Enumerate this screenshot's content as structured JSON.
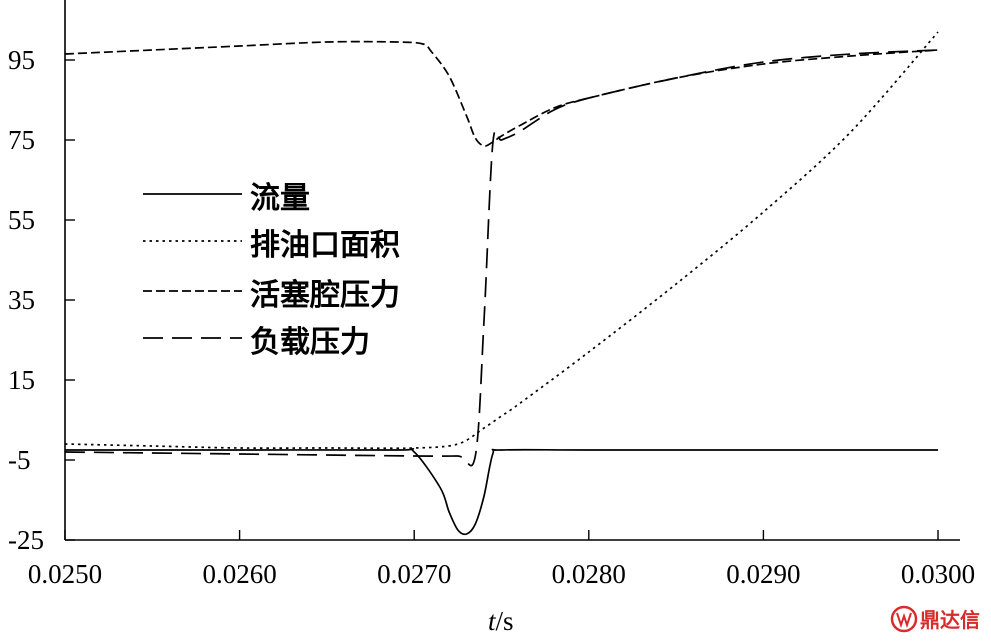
{
  "chart_data": {
    "type": "line",
    "xlabel_italic": "t",
    "xlabel_unit": "/s",
    "xlim": [
      0.025,
      0.03
    ],
    "ylim": [
      -25,
      105
    ],
    "x_ticks": [
      "0.0250",
      "0.0260",
      "0.0270",
      "0.0280",
      "0.0290",
      "0.0300"
    ],
    "x_tick_values": [
      0.025,
      0.026,
      0.027,
      0.028,
      0.029,
      0.03
    ],
    "y_ticks": [
      "95",
      "75",
      "55",
      "35",
      "15",
      "-5",
      "-25"
    ],
    "y_tick_values": [
      95,
      75,
      55,
      35,
      15,
      -5,
      -25
    ],
    "grid": false,
    "legend_position": "center-left",
    "series": [
      {
        "name": "流量",
        "style": "solid",
        "x": [
          0.025,
          0.026,
          0.0269,
          0.027,
          0.02715,
          0.0272,
          0.02725,
          0.0273,
          0.02735,
          0.0274,
          0.02745,
          0.0275,
          0.028,
          0.029,
          0.03
        ],
        "y": [
          -2.5,
          -2.5,
          -2.5,
          -3,
          -12,
          -18,
          -22.5,
          -23.5,
          -21,
          -14,
          -3.5,
          -2.5,
          -2.5,
          -2.5,
          -2.5
        ]
      },
      {
        "name": "排油口面积",
        "style": "dotted",
        "x": [
          0.025,
          0.0255,
          0.026,
          0.0265,
          0.027,
          0.02725,
          0.0274,
          0.0275,
          0.0276,
          0.028,
          0.0285,
          0.029,
          0.0295,
          0.03
        ],
        "y": [
          -1,
          -1.5,
          -2,
          -2,
          -2,
          -1,
          3,
          6,
          9,
          22,
          39,
          57,
          77,
          102
        ]
      },
      {
        "name": "活塞腔压力",
        "style": "dashed",
        "x": [
          0.025,
          0.0255,
          0.026,
          0.0265,
          0.0269,
          0.02705,
          0.0271,
          0.0272,
          0.0273,
          0.02735,
          0.0274,
          0.02745,
          0.0275,
          0.0276,
          0.0278,
          0.028,
          0.0285,
          0.029,
          0.0295,
          0.03
        ],
        "y": [
          96.5,
          97.5,
          98.5,
          99.5,
          99.5,
          99,
          97,
          91,
          81,
          75.5,
          73.5,
          74.5,
          76,
          78.5,
          83,
          85.5,
          90.5,
          94,
          96,
          97.5
        ]
      },
      {
        "name": "负载压力",
        "style": "long-dashed",
        "x": [
          0.025,
          0.026,
          0.027,
          0.02725,
          0.02735,
          0.0274,
          0.02745,
          0.0275,
          0.0276,
          0.0278,
          0.028,
          0.0285,
          0.029,
          0.0295,
          0.03
        ],
        "y": [
          -3,
          -3.5,
          -4,
          -4,
          -4,
          30,
          74,
          75,
          77,
          82.5,
          85.5,
          90.5,
          94.5,
          96.5,
          97.5
        ]
      }
    ]
  },
  "watermark": {
    "text": "鼎达信",
    "color": "#d92b2b"
  }
}
